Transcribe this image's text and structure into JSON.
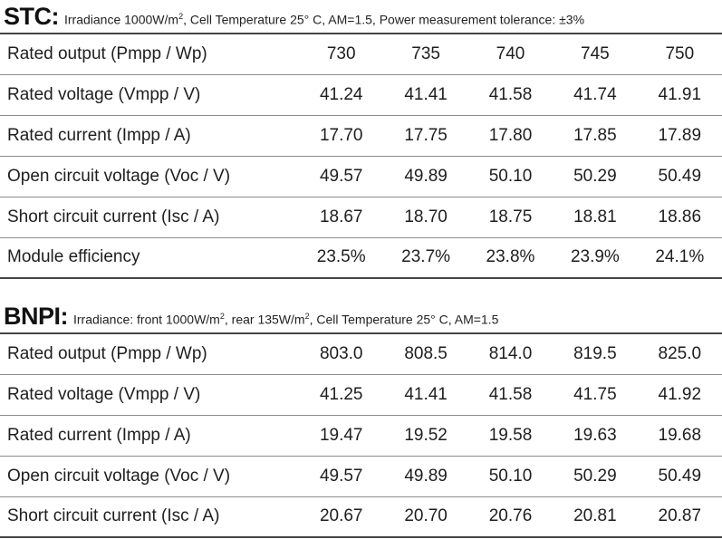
{
  "stc": {
    "title": "STC:",
    "note_pre": "Irradiance 1000W/m",
    "note_sup": "2",
    "note_post": ", Cell Temperature 25° C, AM=1.5, Power measurement tolerance: ±3%",
    "rows": [
      {
        "label": "Rated output (Pmpp / Wp)",
        "values": [
          "730",
          "735",
          "740",
          "745",
          "750"
        ]
      },
      {
        "label": "Rated voltage (Vmpp / V)",
        "values": [
          "41.24",
          "41.41",
          "41.58",
          "41.74",
          "41.91"
        ]
      },
      {
        "label": "Rated current (Impp / A)",
        "values": [
          "17.70",
          "17.75",
          "17.80",
          "17.85",
          "17.89"
        ]
      },
      {
        "label": "Open circuit voltage (Voc / V)",
        "values": [
          "49.57",
          "49.89",
          "50.10",
          "50.29",
          "50.49"
        ]
      },
      {
        "label": "Short circuit current (Isc / A)",
        "values": [
          "18.67",
          "18.70",
          "18.75",
          "18.81",
          "18.86"
        ]
      },
      {
        "label": "Module efficiency",
        "values": [
          "23.5%",
          "23.7%",
          "23.8%",
          "23.9%",
          "24.1%"
        ]
      }
    ]
  },
  "bnpi": {
    "title": "BNPI:",
    "note_pre": "Irradiance: front 1000W/m",
    "note_sup": "2",
    "note_mid": ", rear 135W/m",
    "note_sup2": "2",
    "note_post": ", Cell Temperature 25° C, AM=1.5",
    "rows": [
      {
        "label": "Rated output (Pmpp / Wp)",
        "values": [
          "803.0",
          "808.5",
          "814.0",
          "819.5",
          "825.0"
        ]
      },
      {
        "label": "Rated voltage (Vmpp / V)",
        "values": [
          "41.25",
          "41.41",
          "41.58",
          "41.75",
          "41.92"
        ]
      },
      {
        "label": "Rated current (Impp / A)",
        "values": [
          "19.47",
          "19.52",
          "19.58",
          "19.63",
          "19.68"
        ]
      },
      {
        "label": "Open circuit voltage (Voc / V)",
        "values": [
          "49.57",
          "49.89",
          "50.10",
          "50.29",
          "50.49"
        ]
      },
      {
        "label": "Short circuit current (Isc / A)",
        "values": [
          "20.67",
          "20.70",
          "20.76",
          "20.81",
          "20.87"
        ]
      }
    ]
  }
}
